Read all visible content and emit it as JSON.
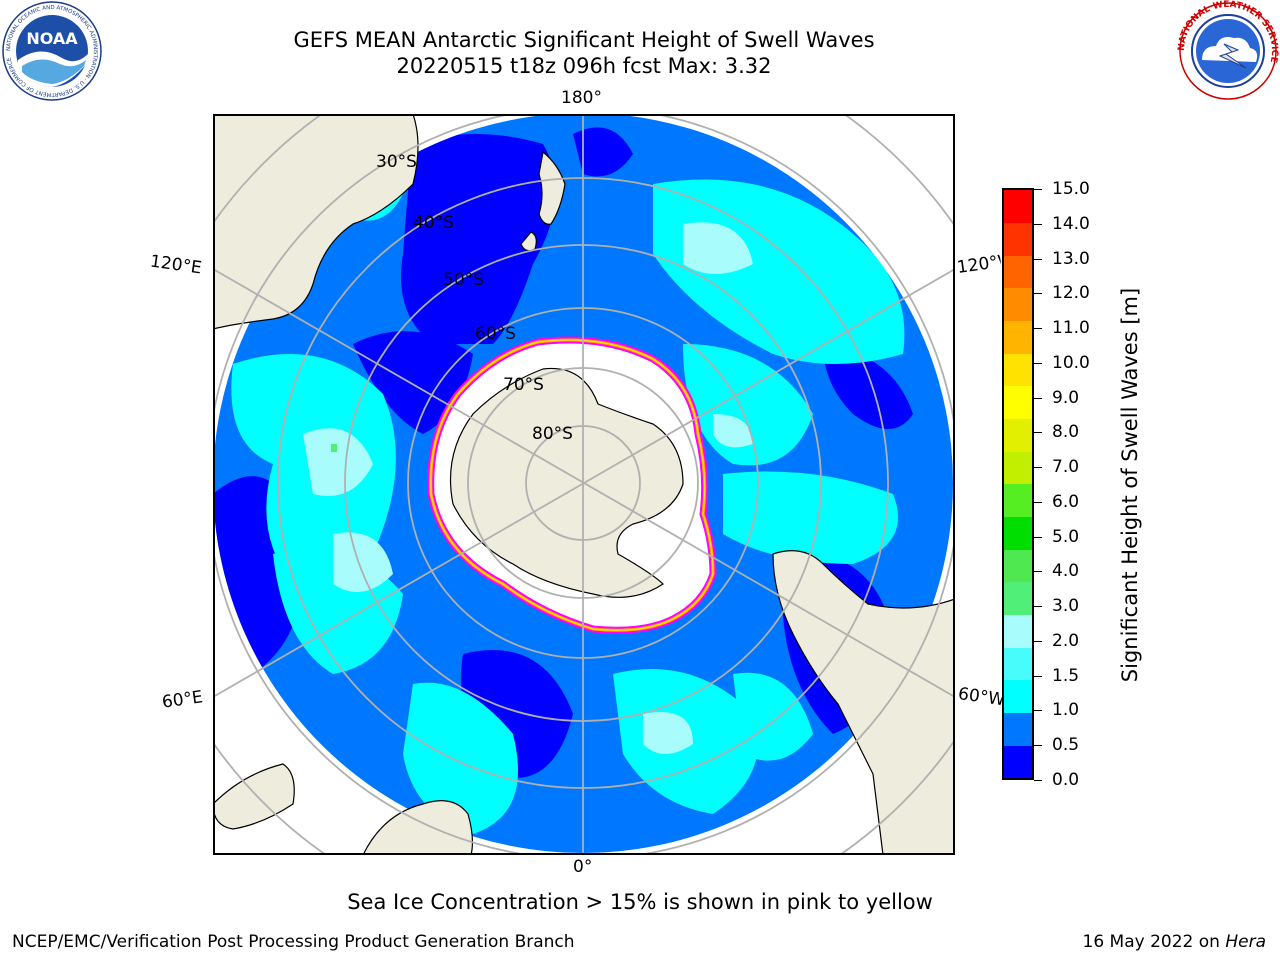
{
  "header": {
    "title_line1": "GEFS MEAN Antarctic Significant Height of Swell Waves",
    "title_line2": "20220515 t18z 096h fcst   Max: 3.32"
  },
  "logos": {
    "left": {
      "name": "noaa-logo",
      "text": "NOAA",
      "ring_text": "NATIONAL OCEANIC AND ATMOSPHERIC ADMINISTRATION · U.S. DEPARTMENT OF COMMERCE"
    },
    "right": {
      "name": "nws-logo",
      "ring_text": "NATIONAL WEATHER SERVICE"
    }
  },
  "map": {
    "projection": "south-polar-stereographic",
    "meridian_labels": [
      "180°",
      "120°E",
      "120°W",
      "60°E",
      "60°W",
      "0°"
    ],
    "latitude_labels": [
      "30°S",
      "40°S",
      "50°S",
      "60°S",
      "70°S",
      "80°S"
    ],
    "colors": {
      "land": "#eeecdc",
      "ice_sheet": "#ffffff",
      "graticule": "#b0b0b0",
      "sea_ice_edge": [
        "#ff00ff",
        "#ffaa00",
        "#ffee00"
      ]
    }
  },
  "colorbar": {
    "title": "Significant Height of Swell Waves [m]",
    "tick_labels": [
      "0.0",
      "0.5",
      "1.0",
      "1.5",
      "2.0",
      "3.0",
      "4.0",
      "5.0",
      "6.0",
      "7.0",
      "8.0",
      "9.0",
      "10.0",
      "11.0",
      "12.0",
      "13.0",
      "14.0",
      "15.0"
    ],
    "colors": [
      "#0000ff",
      "#0077ff",
      "#00ffff",
      "#48fcfc",
      "#a8fcfc",
      "#50f078",
      "#50e850",
      "#00dd00",
      "#55ee22",
      "#c2ee00",
      "#e2f000",
      "#ffff00",
      "#ffe200",
      "#ffb400",
      "#ff8c00",
      "#ff6400",
      "#ff3300",
      "#ff0000"
    ]
  },
  "annotation": "Sea Ice Concentration > 15% is shown in pink to yellow",
  "footer": {
    "left": "NCEP/EMC/Verification Post Processing Product Generation Branch",
    "right_prefix": "16 May 2022 on ",
    "right_machine": "Hera"
  }
}
